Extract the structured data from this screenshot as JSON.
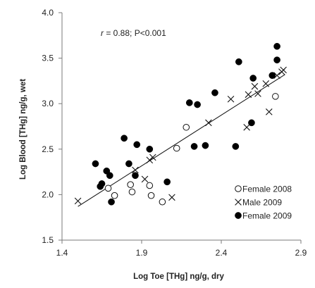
{
  "chart_data": {
    "type": "scatter",
    "xlabel": "Log Toe [THg] ng/g, dry",
    "ylabel": "Log Blood [THg] ng/g, wet",
    "xlim": [
      1.4,
      2.9
    ],
    "ylim": [
      1.5,
      4.0
    ],
    "xticks": [
      "1.4",
      "1.9",
      "2.4",
      "2.9"
    ],
    "yticks": [
      "1.5",
      "2.0",
      "2.5",
      "3.0",
      "3.5",
      "4.0"
    ],
    "annotation": {
      "r_symbol": "r",
      "rest": " = 0.88; P<0.001"
    },
    "legend_position": "lower-right",
    "trendline": {
      "x": [
        1.5,
        2.8
      ],
      "y": [
        1.87,
        3.32
      ]
    },
    "series": [
      {
        "name": "Female 2008",
        "marker": "open-circle",
        "points": [
          {
            "x": 1.69,
            "y": 2.07
          },
          {
            "x": 1.73,
            "y": 1.99
          },
          {
            "x": 1.83,
            "y": 2.11
          },
          {
            "x": 1.84,
            "y": 2.03
          },
          {
            "x": 1.95,
            "y": 2.1
          },
          {
            "x": 1.96,
            "y": 1.99
          },
          {
            "x": 2.03,
            "y": 1.92
          },
          {
            "x": 2.12,
            "y": 2.51
          },
          {
            "x": 2.18,
            "y": 2.74
          },
          {
            "x": 2.74,
            "y": 3.08
          }
        ]
      },
      {
        "name": "Male 2009",
        "marker": "x",
        "points": [
          {
            "x": 1.5,
            "y": 1.93
          },
          {
            "x": 1.86,
            "y": 2.27
          },
          {
            "x": 1.92,
            "y": 2.17
          },
          {
            "x": 1.95,
            "y": 2.38
          },
          {
            "x": 1.97,
            "y": 2.41
          },
          {
            "x": 2.09,
            "y": 1.97
          },
          {
            "x": 2.32,
            "y": 2.79
          },
          {
            "x": 2.46,
            "y": 3.05
          },
          {
            "x": 2.56,
            "y": 2.74
          },
          {
            "x": 2.57,
            "y": 3.1
          },
          {
            "x": 2.61,
            "y": 3.19
          },
          {
            "x": 2.63,
            "y": 3.11
          },
          {
            "x": 2.68,
            "y": 3.22
          },
          {
            "x": 2.7,
            "y": 2.91
          },
          {
            "x": 2.75,
            "y": 3.31
          },
          {
            "x": 2.78,
            "y": 3.35
          },
          {
            "x": 2.79,
            "y": 3.37
          }
        ]
      },
      {
        "name": "Female 2009",
        "marker": "filled-circle",
        "points": [
          {
            "x": 1.61,
            "y": 2.34
          },
          {
            "x": 1.64,
            "y": 2.09
          },
          {
            "x": 1.65,
            "y": 2.12
          },
          {
            "x": 1.68,
            "y": 2.26
          },
          {
            "x": 1.7,
            "y": 2.21
          },
          {
            "x": 1.71,
            "y": 1.92
          },
          {
            "x": 1.79,
            "y": 2.62
          },
          {
            "x": 1.82,
            "y": 2.34
          },
          {
            "x": 1.86,
            "y": 2.21
          },
          {
            "x": 1.87,
            "y": 2.55
          },
          {
            "x": 1.95,
            "y": 2.5
          },
          {
            "x": 2.06,
            "y": 2.14
          },
          {
            "x": 2.2,
            "y": 3.01
          },
          {
            "x": 2.23,
            "y": 2.53
          },
          {
            "x": 2.25,
            "y": 2.99
          },
          {
            "x": 2.3,
            "y": 2.54
          },
          {
            "x": 2.36,
            "y": 3.12
          },
          {
            "x": 2.49,
            "y": 2.53
          },
          {
            "x": 2.51,
            "y": 3.46
          },
          {
            "x": 2.59,
            "y": 2.79
          },
          {
            "x": 2.6,
            "y": 3.28
          },
          {
            "x": 2.72,
            "y": 3.31
          },
          {
            "x": 2.75,
            "y": 3.48
          },
          {
            "x": 2.75,
            "y": 3.63
          }
        ]
      }
    ]
  }
}
